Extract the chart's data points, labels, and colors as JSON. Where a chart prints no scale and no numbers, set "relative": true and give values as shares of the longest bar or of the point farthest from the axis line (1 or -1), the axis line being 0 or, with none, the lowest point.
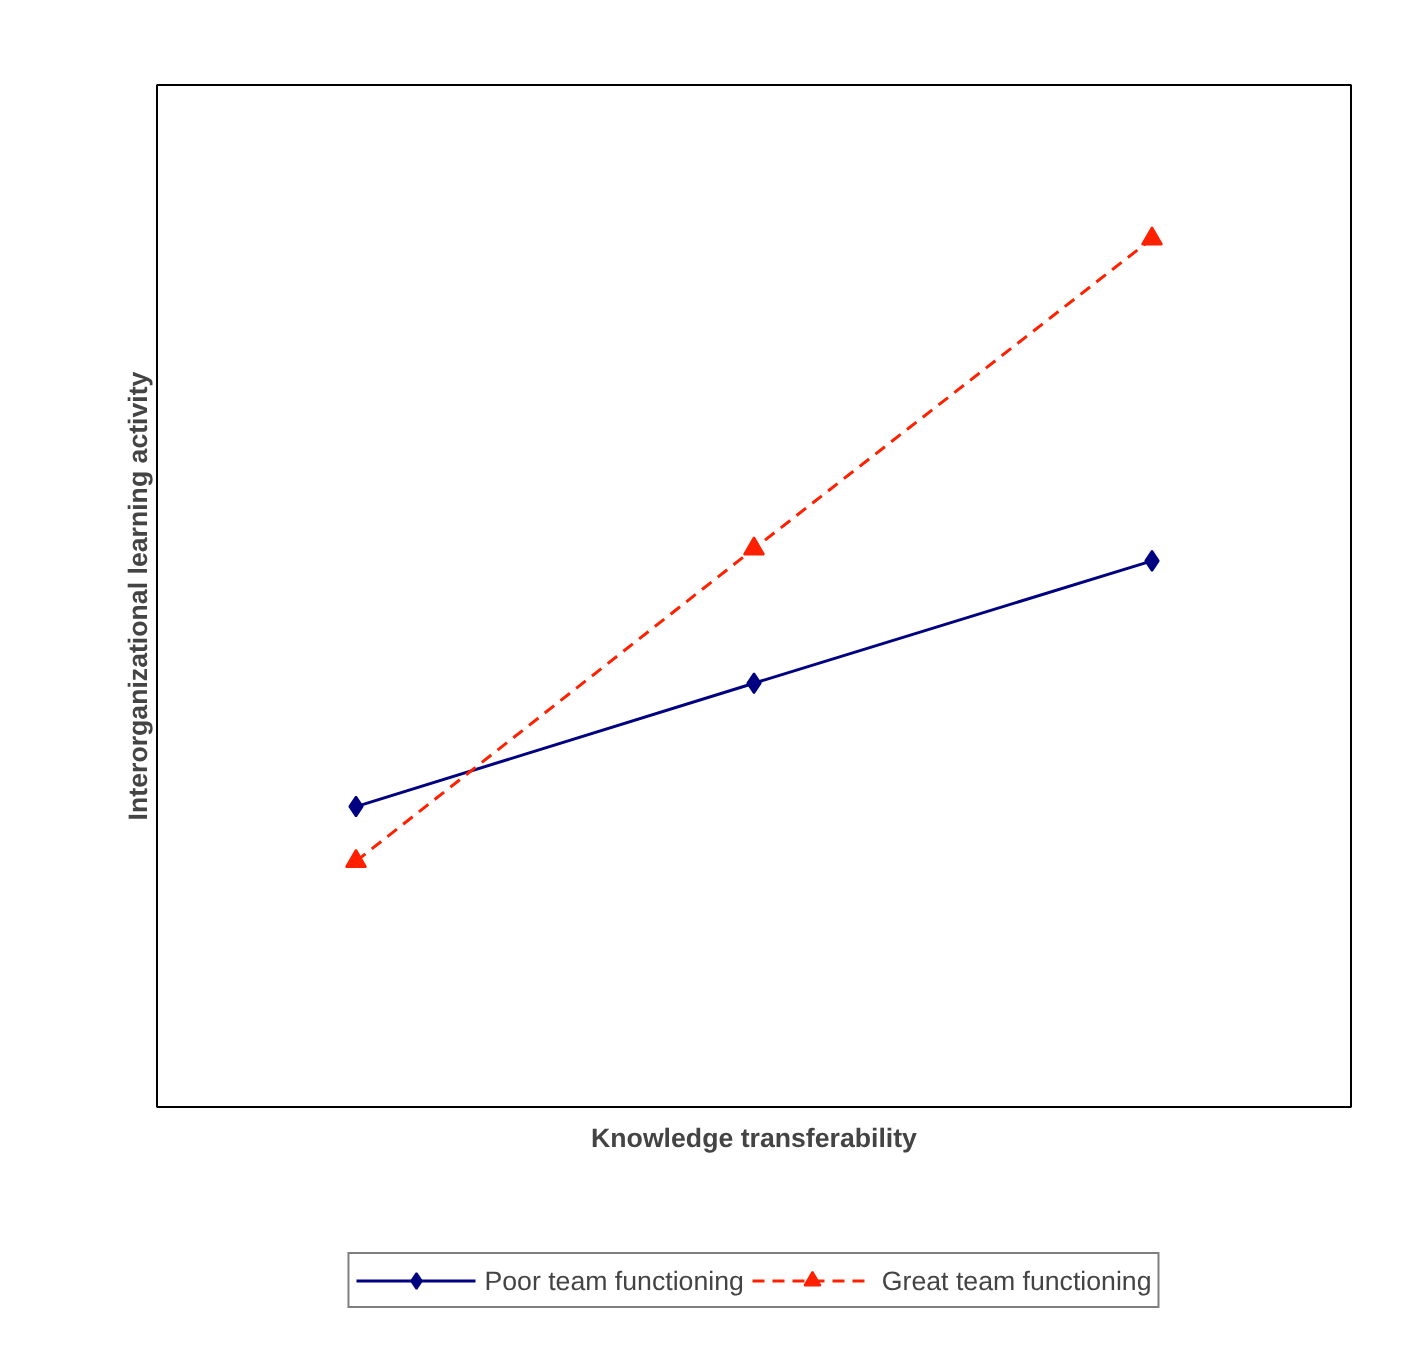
{
  "chart_data": {
    "type": "line",
    "relative": true,
    "xlabel": "Knowledge transferability",
    "ylabel": "Interorganizational learning activity",
    "categories": [
      null,
      null,
      null
    ],
    "legend": "bottom",
    "grid": false,
    "series": [
      {
        "name": "Poor team functioning",
        "color": "#000080",
        "values": [
          0.346,
          0.488,
          0.629
        ],
        "marker": "diamond",
        "line_style": "solid"
      },
      {
        "name": "Great team functioning",
        "color": "#ff2000",
        "values": [
          0.283,
          0.643,
          1
        ],
        "marker": "triangle",
        "line_style": "dashed"
      }
    ]
  }
}
